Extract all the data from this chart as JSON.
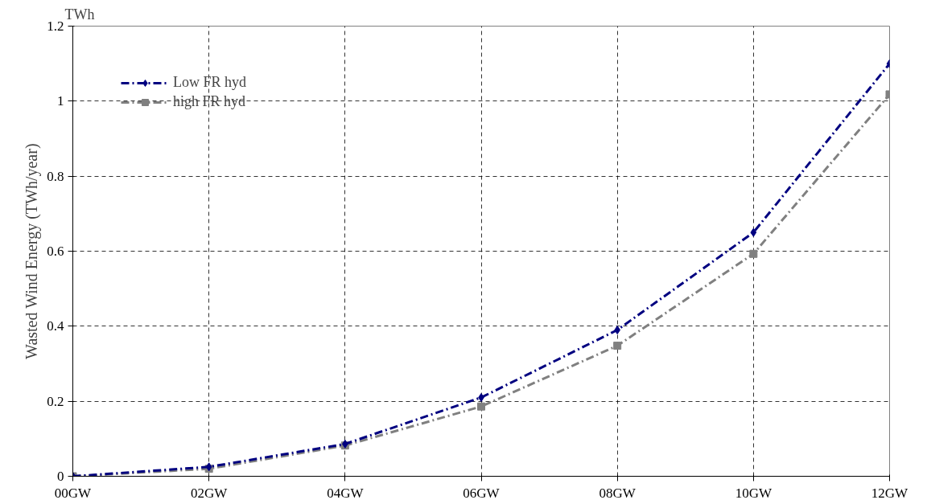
{
  "chart_data": {
    "type": "line",
    "ylabel": "Wasted Wind Energy (TWh/year)",
    "annotations": [
      "TWh"
    ],
    "categories": [
      "00GW",
      "02GW",
      "04GW",
      "06GW",
      "08GW",
      "10GW",
      "12GW"
    ],
    "series": [
      {
        "name": "Low FR hyd",
        "color": "#000080",
        "marker": "diamond",
        "values": [
          0,
          0.025,
          0.086,
          0.21,
          0.39,
          0.65,
          1.1
        ]
      },
      {
        "name": "high FR hyd",
        "color": "#808080",
        "marker": "square",
        "values": [
          0,
          0.02,
          0.082,
          0.186,
          0.348,
          0.593,
          1.018
        ]
      }
    ],
    "ylim": [
      0,
      1.2
    ],
    "yticks": [
      0,
      0.2,
      0.4,
      0.6,
      0.8,
      1,
      1.2
    ],
    "grid": true,
    "legend": "top left",
    "line_style": "dashed"
  }
}
